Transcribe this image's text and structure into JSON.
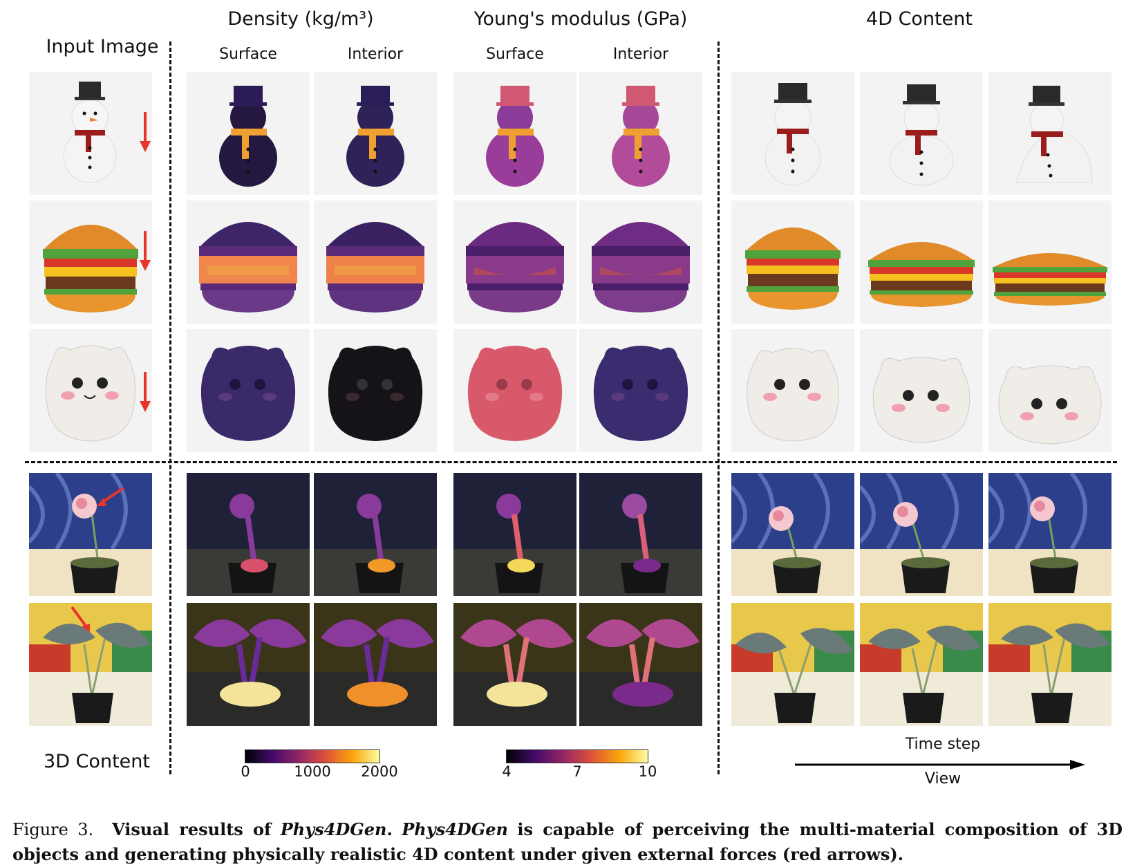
{
  "headers": {
    "input_image": "Input Image",
    "density": "Density (kg/m³)",
    "youngs": "Young's modulus (GPa)",
    "content_4d": "4D Content",
    "density_surface": "Surface",
    "density_interior": "Interior",
    "youngs_surface": "Surface",
    "youngs_interior": "Interior",
    "content_3d": "3D Content"
  },
  "rows": [
    "snowman",
    "burger",
    "plush",
    "carnation",
    "alocasia"
  ],
  "density_colorbar": {
    "ticks": [
      "0",
      "1000",
      "2000"
    ]
  },
  "youngs_colorbar": {
    "ticks": [
      "4",
      "7",
      "10"
    ]
  },
  "axis": {
    "time_step": "Time step",
    "view": "View"
  },
  "caption": {
    "figure": "Figure 3.",
    "bold_1": "Visual results of",
    "name_1": "Phys4DGen",
    "bold_2": ".",
    "name_2": "Phys4DGen",
    "bold_3": "is capable of perceiving the multi-material composition of 3D objects and generating physically realistic 4D content under given external forces (red arrows)."
  },
  "colors": {
    "arrow": "#e8342b",
    "inferno_dark": "#1a0c3a",
    "inferno_purple": "#6a1f8a",
    "inferno_orange": "#f08a2a",
    "inferno_yellow": "#f7e98a"
  }
}
